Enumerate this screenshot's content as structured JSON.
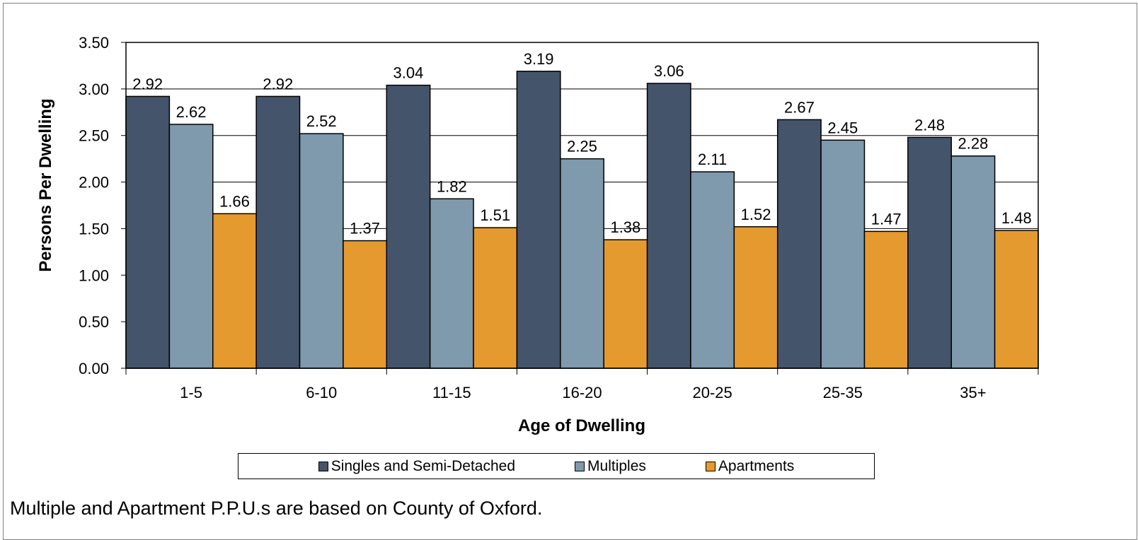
{
  "chart_data": {
    "type": "bar",
    "xlabel": "Age of Dwelling",
    "ylabel": "Persons Per Dwelling",
    "categories": [
      "1-5",
      "6-10",
      "11-15",
      "16-20",
      "20-25",
      "25-35",
      "35+"
    ],
    "series": [
      {
        "name": "Singles and Semi-Detached",
        "color": "#44546a",
        "values": [
          2.92,
          2.92,
          3.04,
          3.19,
          3.06,
          2.67,
          2.48
        ]
      },
      {
        "name": "Multiples",
        "color": "#7f99ad",
        "values": [
          2.62,
          2.52,
          1.82,
          2.25,
          2.11,
          2.45,
          2.28
        ]
      },
      {
        "name": "Apartments",
        "color": "#e59a2f",
        "values": [
          1.66,
          1.37,
          1.51,
          1.38,
          1.52,
          1.47,
          1.48
        ]
      }
    ],
    "ylim": [
      0,
      3.5
    ],
    "yticks": [
      "0.00",
      "0.50",
      "1.00",
      "1.50",
      "2.00",
      "2.50",
      "3.00",
      "3.50"
    ],
    "grid": true,
    "legend_position": "bottom"
  },
  "footnote": "Multiple and Apartment P.P.U.s are based on County of Oxford."
}
